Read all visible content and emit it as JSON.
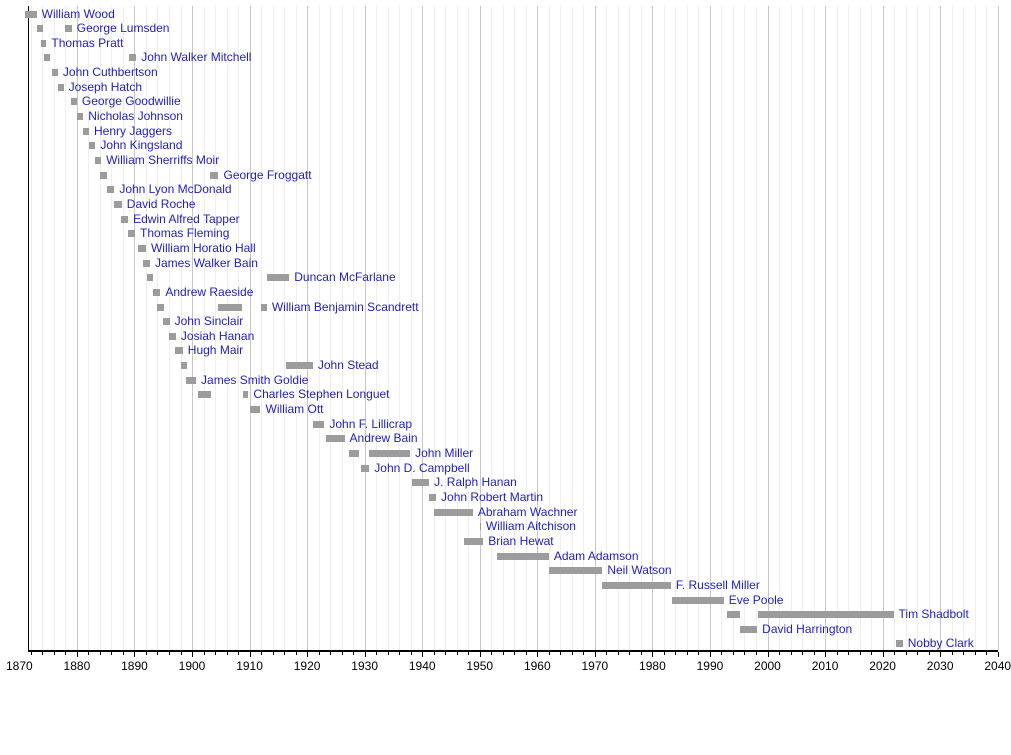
{
  "page": {
    "background": "#ffffff",
    "description": "Timeline chart of mayoral terms of office. Gray horizontal bars mark each mayor's term(s); blue linked names follow the final bar of each row."
  },
  "colors": {
    "bar": "#9c9c9c",
    "name_link": "#1f1fc0",
    "grid_minor": "#eeeeee",
    "grid_major": "#c8c8c8",
    "axis": "#000000",
    "background": "#ffffff"
  },
  "chart_data": {
    "type": "bar",
    "subtype": "horizontal-timeline-gantt",
    "title": "",
    "xlabel": "",
    "ylabel": "",
    "x_axis": {
      "plot_min_year": 1871.5,
      "plot_max_year": 2040.2,
      "tick_start": 1870,
      "tick_end": 2040,
      "tick_step": 10,
      "minor_step": 2,
      "tick_labels": [
        "1870",
        "1880",
        "1890",
        "1900",
        "1910",
        "1920",
        "1930",
        "1940",
        "1950",
        "1960",
        "1970",
        "1980",
        "1990",
        "2000",
        "2010",
        "2020",
        "2030",
        "2040"
      ]
    },
    "grid": {
      "minor": true,
      "major": true,
      "orientation": "vertical"
    },
    "legend": null,
    "bar_color_semantics": "gray = term in office",
    "series": [
      {
        "name": "William Wood",
        "terms": [
          [
            1871.0,
            1873.0
          ]
        ]
      },
      {
        "name": "George Lumsden",
        "terms": [
          [
            1873.0,
            1874.1
          ],
          [
            1877.9,
            1879.1
          ]
        ]
      },
      {
        "name": "Thomas Pratt",
        "terms": [
          [
            1873.7,
            1874.7
          ]
        ]
      },
      {
        "name": "John Walker Mitchell",
        "terms": [
          [
            1874.2,
            1875.3
          ],
          [
            1889.0,
            1890.3
          ]
        ]
      },
      {
        "name": "John Cuthbertson",
        "terms": [
          [
            1875.6,
            1876.7
          ]
        ]
      },
      {
        "name": "Joseph Hatch",
        "terms": [
          [
            1876.7,
            1877.7
          ]
        ]
      },
      {
        "name": "George Goodwillie",
        "terms": [
          [
            1878.9,
            1880.0
          ]
        ]
      },
      {
        "name": "Nicholas Johnson",
        "terms": [
          [
            1880.0,
            1881.1
          ]
        ]
      },
      {
        "name": "Henry Jaggers",
        "terms": [
          [
            1881.0,
            1882.1
          ]
        ]
      },
      {
        "name": "John Kingsland",
        "terms": [
          [
            1882.1,
            1883.2
          ]
        ]
      },
      {
        "name": "William Sherriffs Moir",
        "terms": [
          [
            1883.1,
            1884.2
          ]
        ]
      },
      {
        "name": "George Froggatt",
        "terms": [
          [
            1884.0,
            1885.2
          ],
          [
            1903.2,
            1904.6
          ]
        ]
      },
      {
        "name": "John Lyon McDonald",
        "terms": [
          [
            1885.2,
            1886.5
          ]
        ]
      },
      {
        "name": "David Roche",
        "terms": [
          [
            1886.5,
            1887.8
          ]
        ]
      },
      {
        "name": "Edwin Alfred Tapper",
        "terms": [
          [
            1887.6,
            1888.9
          ]
        ]
      },
      {
        "name": "Thomas Fleming",
        "terms": [
          [
            1888.8,
            1890.1
          ]
        ]
      },
      {
        "name": "William Horatio Hall",
        "terms": [
          [
            1890.7,
            1892.0
          ]
        ]
      },
      {
        "name": "James Walker Bain",
        "terms": [
          [
            1891.5,
            1892.7
          ]
        ]
      },
      {
        "name": "Duncan McFarlane",
        "terms": [
          [
            1892.1,
            1893.2
          ],
          [
            1913.0,
            1916.9
          ]
        ]
      },
      {
        "name": "Andrew Raeside",
        "terms": [
          [
            1893.2,
            1894.5
          ]
        ]
      },
      {
        "name": "William Benjamin Scandrett",
        "terms": [
          [
            1894.0,
            1895.1
          ],
          [
            1904.5,
            1908.7
          ],
          [
            1912.0,
            1913.0
          ]
        ]
      },
      {
        "name": "John Sinclair",
        "terms": [
          [
            1894.9,
            1896.1
          ]
        ]
      },
      {
        "name": "Josiah Hanan",
        "terms": [
          [
            1896.0,
            1897.2
          ]
        ]
      },
      {
        "name": "Hugh Mair",
        "terms": [
          [
            1897.1,
            1898.4
          ]
        ]
      },
      {
        "name": "John Stead",
        "terms": [
          [
            1898.0,
            1899.2
          ],
          [
            1916.3,
            1921.0
          ]
        ]
      },
      {
        "name": "James Smith Goldie",
        "terms": [
          [
            1898.9,
            1900.7
          ]
        ]
      },
      {
        "name": "Charles Stephen Longuet",
        "terms": [
          [
            1901.1,
            1903.3
          ],
          [
            1908.9,
            1909.8
          ]
        ]
      },
      {
        "name": "William Ott",
        "terms": [
          [
            1910.0,
            1911.9
          ]
        ]
      },
      {
        "name": "John F. Lillicrap",
        "terms": [
          [
            1921.0,
            1923.0
          ]
        ]
      },
      {
        "name": "Andrew Bain",
        "terms": [
          [
            1923.2,
            1926.5
          ]
        ]
      },
      {
        "name": "John Miller",
        "terms": [
          [
            1927.2,
            1929.1
          ],
          [
            1930.8,
            1937.9
          ]
        ]
      },
      {
        "name": "John D. Campbell",
        "terms": [
          [
            1929.3,
            1930.8
          ]
        ]
      },
      {
        "name": "J. Ralph Hanan",
        "terms": [
          [
            1938.2,
            1941.2
          ]
        ]
      },
      {
        "name": "John Robert Martin",
        "terms": [
          [
            1941.2,
            1942.4
          ]
        ]
      },
      {
        "name": "Abraham Wachner",
        "terms": [
          [
            1942.0,
            1948.8
          ]
        ]
      },
      {
        "name": "William Aitchison",
        "terms": [
          [
            1950.1,
            1950.2
          ]
        ]
      },
      {
        "name": "Brian Hewat",
        "terms": [
          [
            1947.3,
            1950.6
          ]
        ]
      },
      {
        "name": "Adam Adamson",
        "terms": [
          [
            1953.0,
            1962.0
          ]
        ]
      },
      {
        "name": "Neil Watson",
        "terms": [
          [
            1962.0,
            1971.3
          ]
        ]
      },
      {
        "name": "F. Russell Miller",
        "terms": [
          [
            1971.3,
            1983.2
          ]
        ]
      },
      {
        "name": "Eve Poole",
        "terms": [
          [
            1983.4,
            1992.4
          ]
        ]
      },
      {
        "name": "Tim Shadbolt",
        "terms": [
          [
            1992.9,
            1995.3
          ],
          [
            1998.4,
            2021.9
          ]
        ]
      },
      {
        "name": "David Harrington",
        "terms": [
          [
            1995.2,
            1998.2
          ]
        ]
      },
      {
        "name": "Nobby Clark",
        "terms": [
          [
            2022.3,
            2023.5
          ]
        ]
      }
    ]
  }
}
